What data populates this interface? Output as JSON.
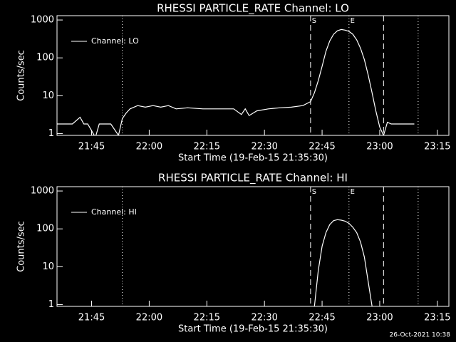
{
  "chart_data": [
    {
      "type": "line",
      "title": "RHESSI PARTICLE_RATE Channel: LO",
      "xlabel": "Start Time (19-Feb-15 21:35:30)",
      "ylabel": "Counts/sec",
      "log_y": true,
      "legend": "upper left",
      "xlim": [
        "21:36",
        "23:18"
      ],
      "xticks": [
        "21:45",
        "22:00",
        "22:15",
        "22:30",
        "22:45",
        "23:00",
        "23:15"
      ],
      "ylim": [
        0.9,
        1300
      ],
      "yticks": [
        1,
        10,
        100,
        1000
      ],
      "series": [
        {
          "name": "Channel: LO",
          "color": "#ffffff",
          "x": [
            "21:36",
            "21:38",
            "21:40",
            "21:42",
            "21:43",
            "21:44",
            "21:46",
            "21:47",
            "21:48",
            "21:50",
            "21:52",
            "21:53",
            "21:54",
            "21:55",
            "21:57",
            "21:59",
            "22:01",
            "22:03",
            "22:05",
            "22:07",
            "22:10",
            "22:14",
            "22:18",
            "22:22",
            "22:24",
            "22:25",
            "22:26",
            "22:28",
            "22:31",
            "22:34",
            "22:37",
            "22:40",
            "22:42",
            "22:43",
            "22:44",
            "22:45",
            "22:46",
            "22:47",
            "22:48",
            "22:49",
            "22:50",
            "22:51",
            "22:52",
            "22:53",
            "22:54",
            "22:55",
            "22:56",
            "22:57",
            "22:58",
            "22:59",
            "23:00",
            "23:01",
            "23:02",
            "23:03",
            "23:05",
            "23:07",
            "23:09"
          ],
          "values": [
            1.8,
            1.8,
            1.8,
            2.7,
            1.8,
            1.8,
            0.8,
            1.8,
            1.8,
            1.8,
            0.9,
            2.5,
            3.5,
            4.5,
            5.5,
            5,
            5.5,
            5,
            5.5,
            4.5,
            4.8,
            4.5,
            4.5,
            4.5,
            3.2,
            4.5,
            3,
            4,
            4.5,
            4.8,
            5,
            5.5,
            7,
            12,
            25,
            60,
            150,
            280,
            420,
            520,
            560,
            540,
            500,
            420,
            300,
            180,
            90,
            35,
            12,
            4,
            1.5,
            0.9,
            2,
            1.8,
            1.8,
            1.8,
            1.8
          ]
        }
      ],
      "markers": [
        {
          "x": "21:53",
          "style": "dotted"
        },
        {
          "x": "22:42",
          "style": "dashed"
        },
        {
          "x": "22:52",
          "style": "dotted"
        },
        {
          "x": "23:01",
          "style": "dashed"
        },
        {
          "x": "23:10",
          "style": "dotted"
        }
      ],
      "annotations": [
        {
          "text": "S",
          "x": "22:42"
        },
        {
          "text": "E",
          "x": "22:52"
        }
      ]
    },
    {
      "type": "line",
      "title": "RHESSI PARTICLE_RATE Channel: HI",
      "xlabel": "Start Time (19-Feb-15 21:35:30)",
      "ylabel": "Counts/sec",
      "log_y": true,
      "legend": "upper left",
      "xlim": [
        "21:36",
        "23:18"
      ],
      "xticks": [
        "21:45",
        "22:00",
        "22:15",
        "22:30",
        "22:45",
        "23:00",
        "23:15"
      ],
      "ylim": [
        0.9,
        1300
      ],
      "yticks": [
        1,
        10,
        100,
        1000
      ],
      "series": [
        {
          "name": "Channel: HI",
          "color": "#ffffff",
          "x": [
            "22:43",
            "22:44",
            "22:45",
            "22:46",
            "22:47",
            "22:48",
            "22:49",
            "22:50",
            "22:51",
            "22:52",
            "22:53",
            "22:54",
            "22:55",
            "22:56",
            "22:57",
            "22:58"
          ],
          "values": [
            0.9,
            8,
            35,
            80,
            130,
            165,
            175,
            170,
            160,
            140,
            110,
            80,
            45,
            18,
            4,
            0.9
          ]
        }
      ],
      "markers": [
        {
          "x": "21:53",
          "style": "dotted"
        },
        {
          "x": "22:42",
          "style": "dashed"
        },
        {
          "x": "22:52",
          "style": "dotted"
        },
        {
          "x": "23:01",
          "style": "dashed"
        },
        {
          "x": "23:10",
          "style": "dotted"
        }
      ],
      "annotations": [
        {
          "text": "S",
          "x": "22:42"
        },
        {
          "text": "E",
          "x": "22:52"
        }
      ]
    }
  ],
  "footer": "26-Oct-2021 10:38"
}
